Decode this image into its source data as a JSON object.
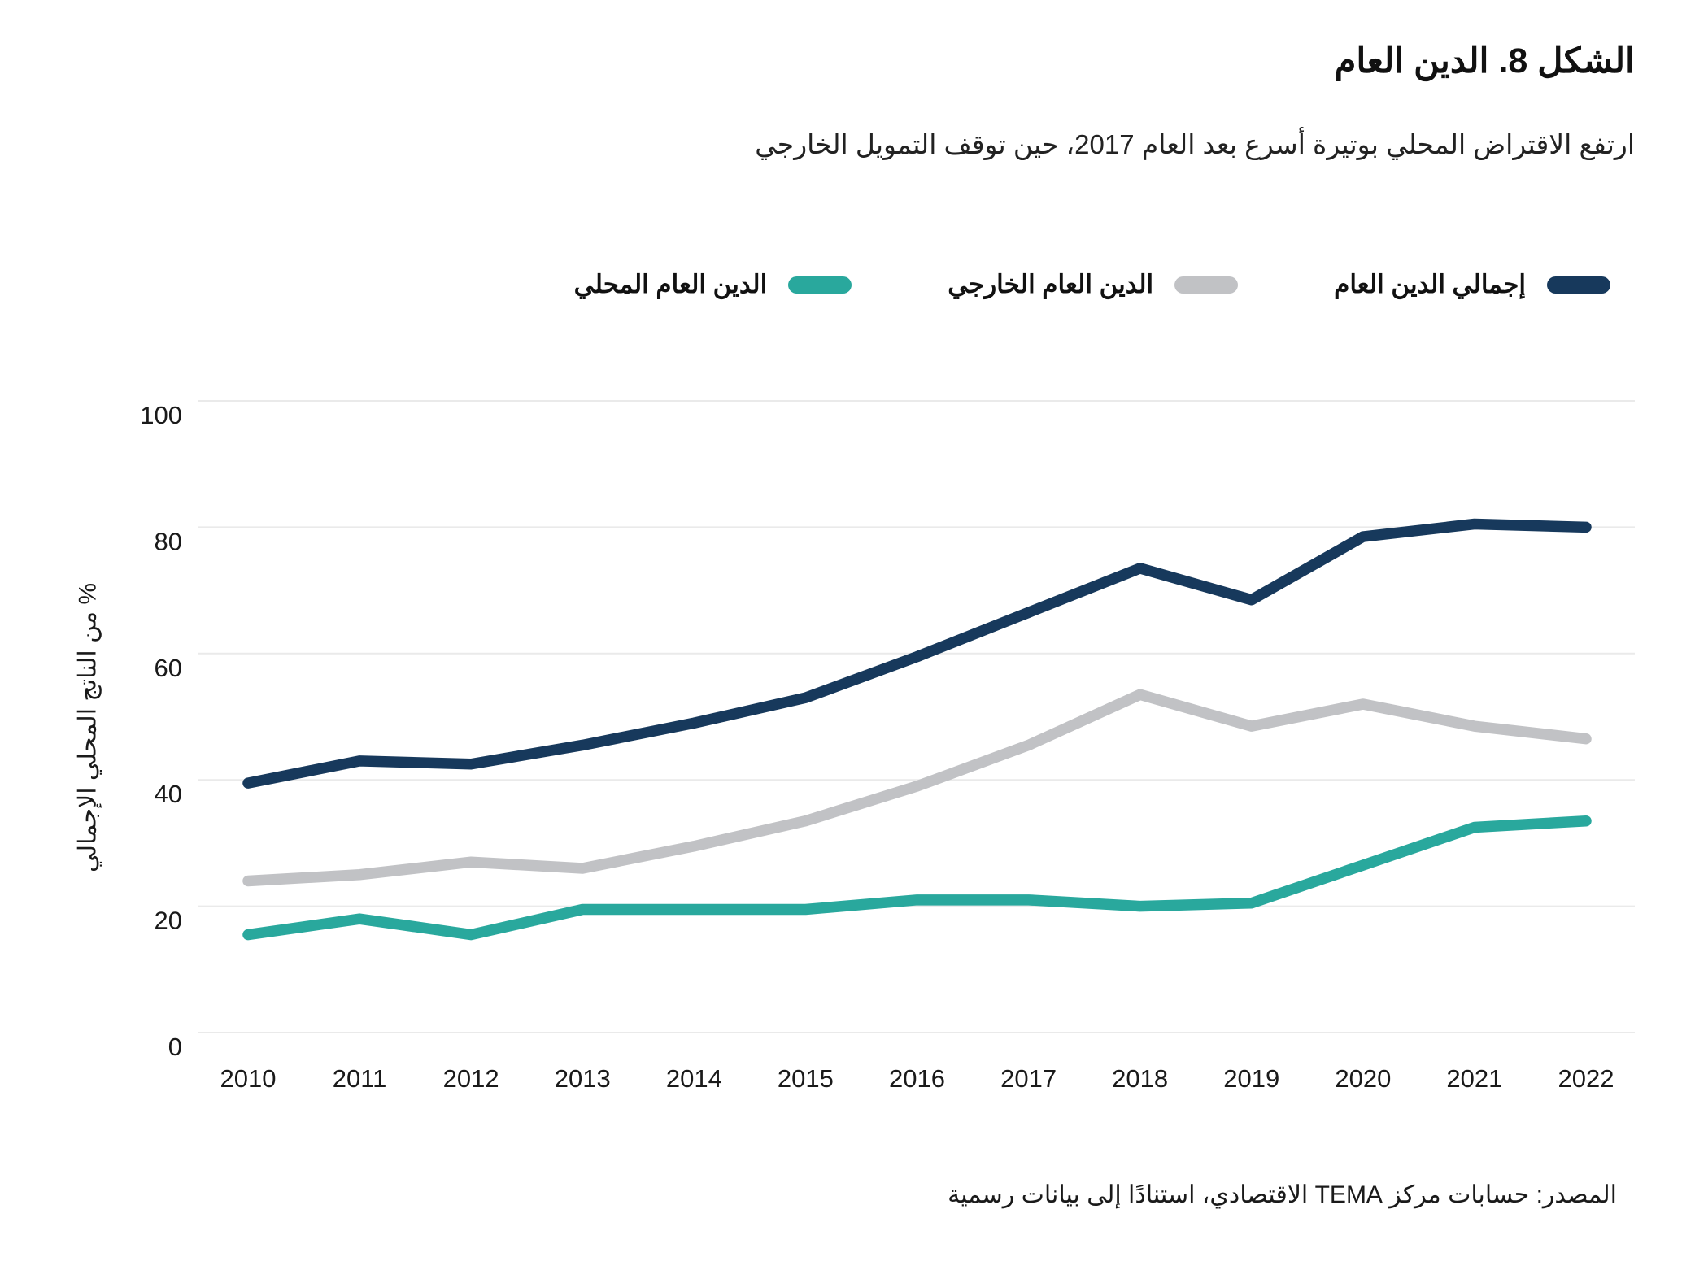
{
  "figure": {
    "title": "الشكل 8. الدين العام",
    "subtitle": "ارتفع الاقتراض المحلي بوتيرة أسرع بعد العام 2017، حين توقف التمويل الخارجي",
    "source": "المصدر: حسابات مركز TEMA الاقتصادي، استنادًا إلى بيانات رسمية"
  },
  "colors": {
    "total": "#17395C",
    "external": "#C1C2C5",
    "domestic": "#29A89D",
    "gridline": "#EAEAEA",
    "text": "#1A1A1A"
  },
  "legend": [
    {
      "label": "إجمالي الدين العام",
      "color": "#17395C"
    },
    {
      "label": "الدين العام الخارجي",
      "color": "#C1C2C5"
    },
    {
      "label": "الدين العام المحلي",
      "color": "#29A89D"
    }
  ],
  "chart_data": {
    "type": "line",
    "title": "الشكل 8. الدين العام",
    "xlabel": "",
    "ylabel": "% من الناتج المحلي الإجمالي",
    "x": [
      2010,
      2011,
      2012,
      2013,
      2014,
      2015,
      2016,
      2017,
      2018,
      2019,
      2020,
      2021,
      2022
    ],
    "series": [
      {
        "name": "إجمالي الدين العام",
        "color": "#17395C",
        "values": [
          39.5,
          43,
          42.5,
          45.5,
          49,
          53,
          59.5,
          66.5,
          73.5,
          68.5,
          78.5,
          80.5,
          80
        ]
      },
      {
        "name": "الدين العام الخارجي",
        "color": "#C1C2C5",
        "values": [
          24,
          25,
          27,
          26,
          29.5,
          33.5,
          39,
          45.5,
          53.5,
          48.5,
          52,
          48.5,
          46.5
        ]
      },
      {
        "name": "الدين العام المحلي",
        "color": "#29A89D",
        "values": [
          15.5,
          18,
          15.5,
          19.5,
          19.5,
          19.5,
          21,
          21,
          20,
          20.5,
          26.5,
          32.5,
          33.5
        ]
      }
    ],
    "ylim": [
      0,
      100
    ],
    "yticks": [
      0,
      20,
      40,
      60,
      80,
      100
    ],
    "grid": true,
    "legend_position": "top"
  }
}
